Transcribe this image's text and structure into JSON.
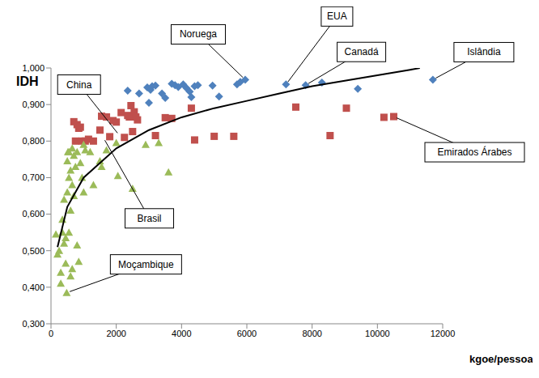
{
  "chart_data": {
    "type": "scatter",
    "x_label": "kgoe/pessoa",
    "y_label": "IDH",
    "xlim": [
      0,
      12000
    ],
    "xticks": [
      0,
      2000,
      4000,
      6000,
      8000,
      10000,
      12000
    ],
    "ylim": [
      0.3,
      1.0
    ],
    "yticks": [
      {
        "value": 0.3,
        "label": "0,300"
      },
      {
        "value": 0.4,
        "label": "0,400"
      },
      {
        "value": 0.5,
        "label": "0,500"
      },
      {
        "value": 0.6,
        "label": "0,600"
      },
      {
        "value": 0.7,
        "label": "0,700"
      },
      {
        "value": 0.8,
        "label": "0,800"
      },
      {
        "value": 0.9,
        "label": "0,900"
      },
      {
        "value": 1.0,
        "label": "1,000"
      }
    ],
    "grid": false,
    "series": [
      {
        "color": "#4f81bd",
        "marker": "diamond",
        "x": [
          2350,
          2700,
          2950,
          3000,
          3050,
          3100,
          3200,
          3400,
          3500,
          3700,
          3800,
          3900,
          4050,
          4150,
          4250,
          4300,
          4400,
          4500,
          4950,
          5150,
          5700,
          5800,
          5950,
          7200,
          7800,
          8300,
          9400,
          11700
        ],
        "values": [
          0.938,
          0.93,
          0.947,
          0.905,
          0.94,
          0.95,
          0.952,
          0.93,
          0.918,
          0.957,
          0.953,
          0.948,
          0.955,
          0.945,
          0.935,
          0.92,
          0.95,
          0.953,
          0.952,
          0.922,
          0.955,
          0.962,
          0.968,
          0.955,
          0.953,
          0.96,
          0.943,
          0.968
        ]
      },
      {
        "color": "#c0504d",
        "marker": "square",
        "x": [
          700,
          800,
          850,
          900,
          750,
          950,
          1050,
          1150,
          1300,
          1500,
          1550,
          1700,
          1800,
          1900,
          2000,
          2150,
          2250,
          2350,
          2400,
          2450,
          2500,
          2550,
          2600,
          2650,
          3200,
          3500,
          3700,
          4300,
          4400,
          5000,
          5600,
          7500,
          8550,
          9050,
          10200,
          10500
        ],
        "values": [
          0.853,
          0.845,
          0.835,
          0.838,
          0.8,
          0.8,
          0.8,
          0.805,
          0.8,
          0.83,
          0.868,
          0.866,
          0.812,
          0.856,
          0.852,
          0.878,
          0.81,
          0.87,
          0.866,
          0.897,
          0.826,
          0.88,
          0.866,
          0.858,
          0.815,
          0.864,
          0.862,
          0.89,
          0.803,
          0.813,
          0.813,
          0.893,
          0.815,
          0.89,
          0.865,
          0.867
        ]
      },
      {
        "color": "#9bbb59",
        "marker": "triangle",
        "x": [
          150,
          200,
          250,
          300,
          300,
          350,
          350,
          400,
          400,
          450,
          450,
          480,
          500,
          500,
          520,
          550,
          550,
          600,
          600,
          650,
          650,
          650,
          700,
          700,
          750,
          800,
          800,
          850,
          900,
          950,
          1000,
          1000,
          1050,
          1200,
          1300,
          1500,
          1550,
          1700,
          2000,
          2050,
          2500,
          2900,
          3300,
          3600,
          600,
          550
        ],
        "values": [
          0.545,
          0.49,
          0.5,
          0.41,
          0.44,
          0.55,
          0.585,
          0.52,
          0.64,
          0.535,
          0.465,
          0.385,
          0.745,
          0.66,
          0.77,
          0.7,
          0.55,
          0.61,
          0.72,
          0.78,
          0.68,
          0.45,
          0.65,
          0.76,
          0.73,
          0.77,
          0.515,
          0.47,
          0.74,
          0.7,
          0.79,
          0.66,
          0.775,
          0.77,
          0.68,
          0.745,
          0.73,
          0.775,
          0.795,
          0.705,
          0.67,
          0.79,
          0.795,
          0.715,
          0.43,
          0.77
        ]
      },
      {
        "type": "line",
        "color": "#000000",
        "line_style": "solid",
        "x": [
          200,
          500,
          1000,
          2000,
          3000,
          4000,
          5000,
          6000,
          7000,
          8000,
          9000,
          10000,
          11000,
          11300
        ],
        "values": [
          0.51,
          0.62,
          0.7,
          0.78,
          0.83,
          0.865,
          0.89,
          0.91,
          0.93,
          0.95,
          0.965,
          0.98,
          0.995,
          1.0
        ]
      }
    ],
    "annotations": [
      {
        "text": "Noruega",
        "x": 5950,
        "y": 0.968
      },
      {
        "text": "EUA",
        "x": 7200,
        "y": 0.955
      },
      {
        "text": "Canadá",
        "x": 7800,
        "y": 0.953
      },
      {
        "text": "Islândia",
        "x": 11700,
        "y": 0.968
      },
      {
        "text": "China",
        "x": 2100,
        "y": 0.815
      },
      {
        "text": "Brasil",
        "x": 1600,
        "y": 0.81
      },
      {
        "text": "Moçambique",
        "x": 480,
        "y": 0.385
      },
      {
        "text": "Emirados Árabes",
        "x": 10500,
        "y": 0.867
      }
    ]
  }
}
